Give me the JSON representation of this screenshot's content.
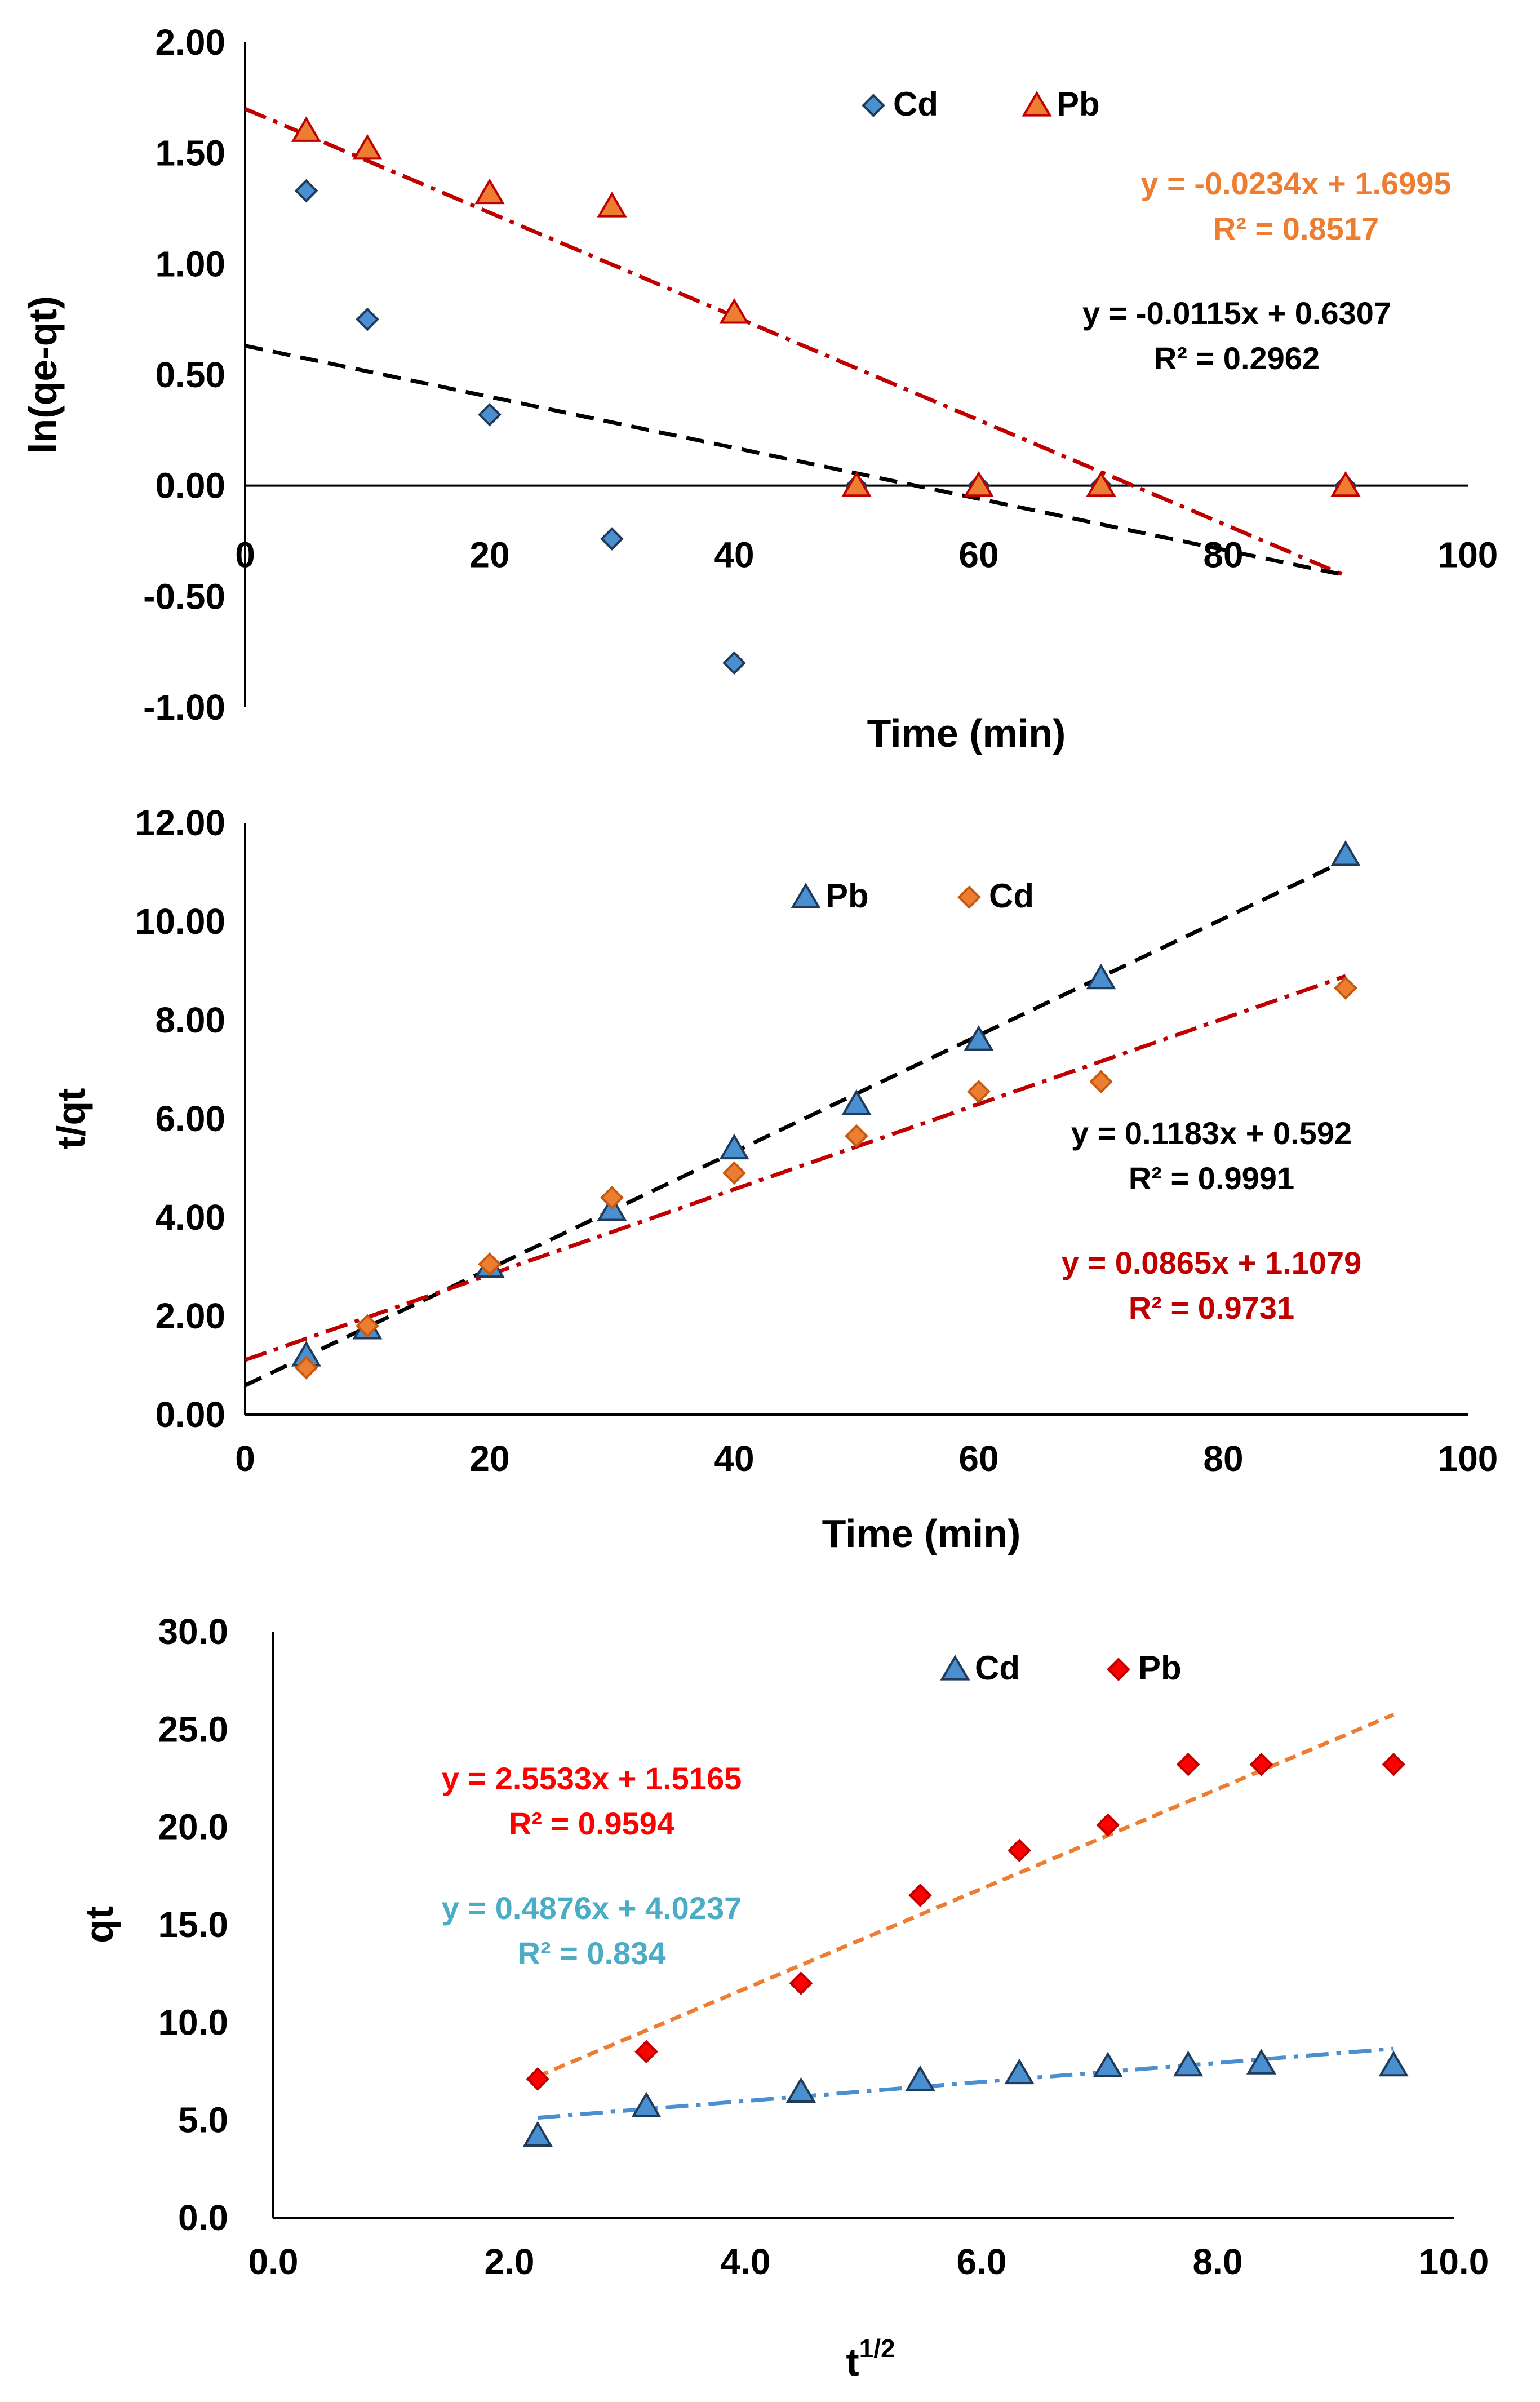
{
  "chart_data": [
    {
      "type": "scatter",
      "title": "",
      "xlabel": "Time (min)",
      "ylabel": "ln(qe-qt)",
      "xlim": [
        0,
        100
      ],
      "ylim": [
        -1,
        2
      ],
      "xticks": [
        "0",
        "20",
        "40",
        "60",
        "80",
        "100"
      ],
      "yticks": [
        "2.00",
        "1.50",
        "1.00",
        "0.50",
        "0.00",
        "-0.50",
        "-1.00"
      ],
      "legend": [
        "Cd",
        "Pb"
      ],
      "series": [
        {
          "name": "Cd",
          "marker": "diamond",
          "color": "#4a8fd0",
          "x": [
            5,
            10,
            20,
            30,
            40,
            50,
            60,
            70,
            90
          ],
          "y": [
            1.33,
            0.75,
            0.32,
            -0.24,
            -0.8,
            0.0,
            0.0,
            0.0,
            0.0
          ]
        },
        {
          "name": "Pb",
          "marker": "triangle",
          "color": "#ed7d31",
          "x": [
            5,
            10,
            20,
            30,
            40,
            50,
            60,
            70,
            90
          ],
          "y": [
            1.6,
            1.52,
            1.32,
            1.26,
            0.78,
            0.0,
            0.0,
            0.0,
            0.0
          ]
        }
      ],
      "trendlines": [
        {
          "series": "Pb",
          "slope": -0.0234,
          "intercept": 1.6995,
          "x_range": [
            0,
            90
          ],
          "color": "#c00000",
          "dash": "dashdot",
          "equation": "y = -0.0234x + 1.6995",
          "r2": "R² = 0.8517",
          "label_color": "#ed7d31"
        },
        {
          "series": "Cd",
          "slope": -0.0115,
          "intercept": 0.6307,
          "x_range": [
            0,
            90
          ],
          "color": "#000000",
          "dash": "dash",
          "equation": "y = -0.0115x + 0.6307",
          "r2": "R² = 0.2962",
          "label_color": "#000000"
        }
      ]
    },
    {
      "type": "scatter",
      "title": "",
      "xlabel": "Time (min)",
      "ylabel": "t/qt",
      "xlim": [
        0,
        100
      ],
      "ylim": [
        0,
        12
      ],
      "xticks": [
        "0",
        "20",
        "40",
        "60",
        "80",
        "100"
      ],
      "yticks": [
        "12.00",
        "10.00",
        "8.00",
        "6.00",
        "4.00",
        "2.00",
        "0.00"
      ],
      "legend": [
        "Pb",
        "Cd"
      ],
      "series": [
        {
          "name": "Pb",
          "marker": "triangle",
          "color": "#4a8fd0",
          "x": [
            5,
            10,
            20,
            30,
            40,
            50,
            60,
            70,
            90
          ],
          "y": [
            1.2,
            1.75,
            3.0,
            4.15,
            5.4,
            6.3,
            7.6,
            8.85,
            11.35
          ]
        },
        {
          "name": "Cd",
          "marker": "diamond",
          "color": "#ed7d31",
          "x": [
            5,
            10,
            20,
            30,
            40,
            50,
            60,
            70,
            90
          ],
          "y": [
            0.95,
            1.8,
            3.05,
            4.4,
            4.9,
            5.65,
            6.55,
            6.75,
            8.65
          ]
        }
      ],
      "trendlines": [
        {
          "series": "Pb",
          "slope": 0.1183,
          "intercept": 0.592,
          "x_range": [
            0,
            90
          ],
          "color": "#000000",
          "dash": "dash",
          "equation": "y = 0.1183x + 0.592",
          "r2": "R² = 0.9991",
          "label_color": "#000000"
        },
        {
          "series": "Cd",
          "slope": 0.0865,
          "intercept": 1.1079,
          "x_range": [
            0,
            90
          ],
          "color": "#c00000",
          "dash": "dashdot",
          "equation": "y = 0.0865x + 1.1079",
          "r2": "R² = 0.9731",
          "label_color": "#c00000"
        }
      ]
    },
    {
      "type": "scatter",
      "title": "",
      "xlabel": "t",
      "xlabel_sup": "1/2",
      "ylabel": "qt",
      "xlim": [
        0,
        10
      ],
      "ylim": [
        0,
        30
      ],
      "xticks": [
        "0.0",
        "2.0",
        "4.0",
        "6.0",
        "8.0",
        "10.0"
      ],
      "yticks": [
        "30.0",
        "25.0",
        "20.0",
        "15.0",
        "10.0",
        "5.0",
        "0.0"
      ],
      "legend": [
        "Cd",
        "Pb"
      ],
      "series": [
        {
          "name": "Cd",
          "marker": "triangle",
          "color": "#4a8fd0",
          "x": [
            2.24,
            3.16,
            4.47,
            5.48,
            6.32,
            7.07,
            7.75,
            8.37,
            9.49
          ],
          "y": [
            4.2,
            5.7,
            6.45,
            7.05,
            7.4,
            7.75,
            7.8,
            7.9,
            7.8
          ]
        },
        {
          "name": "Pb",
          "marker": "diamond",
          "color": "#ff0000",
          "x": [
            2.24,
            3.16,
            4.47,
            5.48,
            6.32,
            7.07,
            7.75,
            8.37,
            9.49
          ],
          "y": [
            7.1,
            8.5,
            12.0,
            16.5,
            18.8,
            20.1,
            23.2,
            23.2,
            23.2
          ]
        }
      ],
      "trendlines": [
        {
          "series": "Pb",
          "slope": 2.5533,
          "intercept": 1.5165,
          "x_range": [
            2.24,
            9.49
          ],
          "color": "#ed7d31",
          "dash": "dot",
          "equation": "y = 2.5533x + 1.5165",
          "r2": "R² = 0.9594",
          "label_color": "#ff0000"
        },
        {
          "series": "Cd",
          "slope": 0.4876,
          "intercept": 4.0237,
          "x_range": [
            2.24,
            9.49
          ],
          "color": "#4a8fd0",
          "dash": "dashdot",
          "equation": "y = 0.4876x + 4.0237",
          "r2": "R² = 0.834",
          "label_color": "#4bacc6"
        }
      ]
    }
  ]
}
